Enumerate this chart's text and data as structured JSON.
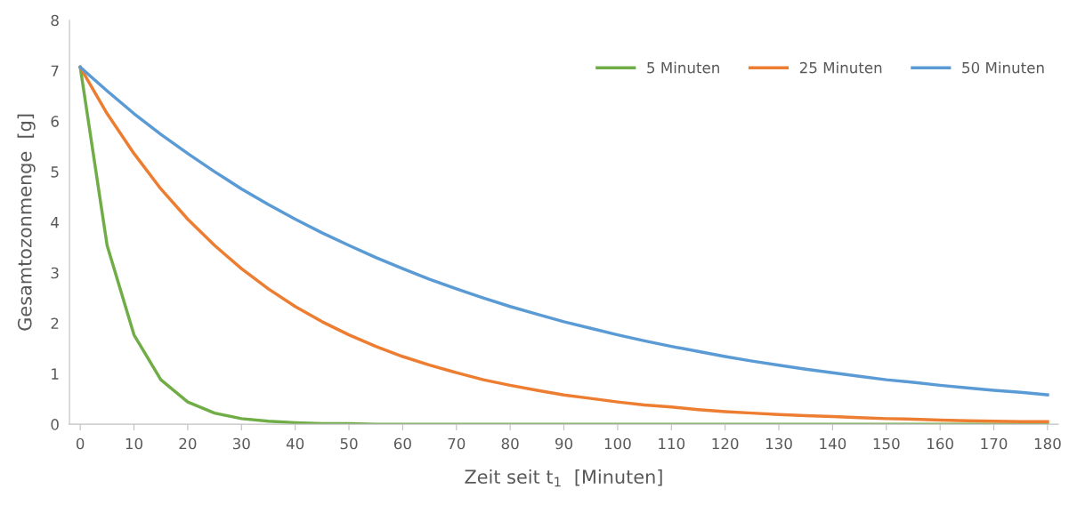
{
  "chart_data": {
    "type": "line",
    "xlabel": "Zeit seit t$_{1}$  [Minuten]",
    "ylabel": "Gesamtozonmenge  [g]",
    "x": [
      0,
      5,
      10,
      15,
      20,
      25,
      30,
      35,
      40,
      45,
      50,
      55,
      60,
      65,
      70,
      75,
      80,
      85,
      90,
      95,
      100,
      105,
      110,
      115,
      120,
      125,
      130,
      135,
      140,
      145,
      150,
      155,
      160,
      165,
      170,
      175,
      180
    ],
    "series": [
      {
        "name": "5 Minuten",
        "color": "#70ad47",
        "values": [
          7.07,
          3.54,
          1.77,
          0.88,
          0.44,
          0.22,
          0.11,
          0.06,
          0.03,
          0.01,
          0.01,
          0,
          0,
          0,
          0,
          0,
          0,
          0,
          0,
          0,
          0,
          0,
          0,
          0,
          0,
          0,
          0,
          0,
          0,
          0,
          0,
          0,
          0,
          0,
          0,
          0,
          0
        ]
      },
      {
        "name": "25 Minuten",
        "color": "#ed7d31",
        "values": [
          7.07,
          6.15,
          5.36,
          4.66,
          4.06,
          3.54,
          3.08,
          2.68,
          2.33,
          2.03,
          1.77,
          1.54,
          1.34,
          1.17,
          1.02,
          0.88,
          0.77,
          0.67,
          0.58,
          0.51,
          0.44,
          0.38,
          0.34,
          0.29,
          0.25,
          0.22,
          0.19,
          0.17,
          0.15,
          0.13,
          0.11,
          0.1,
          0.08,
          0.07,
          0.06,
          0.05,
          0.05
        ]
      },
      {
        "name": "50 Minuten",
        "color": "#5b9bd5",
        "values": [
          7.07,
          6.6,
          6.15,
          5.74,
          5.36,
          5.0,
          4.66,
          4.35,
          4.06,
          3.79,
          3.54,
          3.3,
          3.08,
          2.87,
          2.68,
          2.5,
          2.33,
          2.18,
          2.03,
          1.9,
          1.77,
          1.65,
          1.54,
          1.44,
          1.34,
          1.25,
          1.17,
          1.09,
          1.02,
          0.95,
          0.88,
          0.83,
          0.77,
          0.72,
          0.67,
          0.63,
          0.58
        ]
      }
    ],
    "xlim": [
      -2,
      182
    ],
    "xticks": [
      0,
      10,
      20,
      30,
      40,
      50,
      60,
      70,
      80,
      90,
      100,
      110,
      120,
      130,
      140,
      150,
      160,
      170,
      180
    ],
    "ylim": [
      0,
      8
    ],
    "yticks": [
      0,
      1,
      2,
      3,
      4,
      5,
      6,
      7,
      8
    ],
    "grid": false,
    "legend": "top right",
    "marker": "none",
    "line_style": "solid"
  }
}
